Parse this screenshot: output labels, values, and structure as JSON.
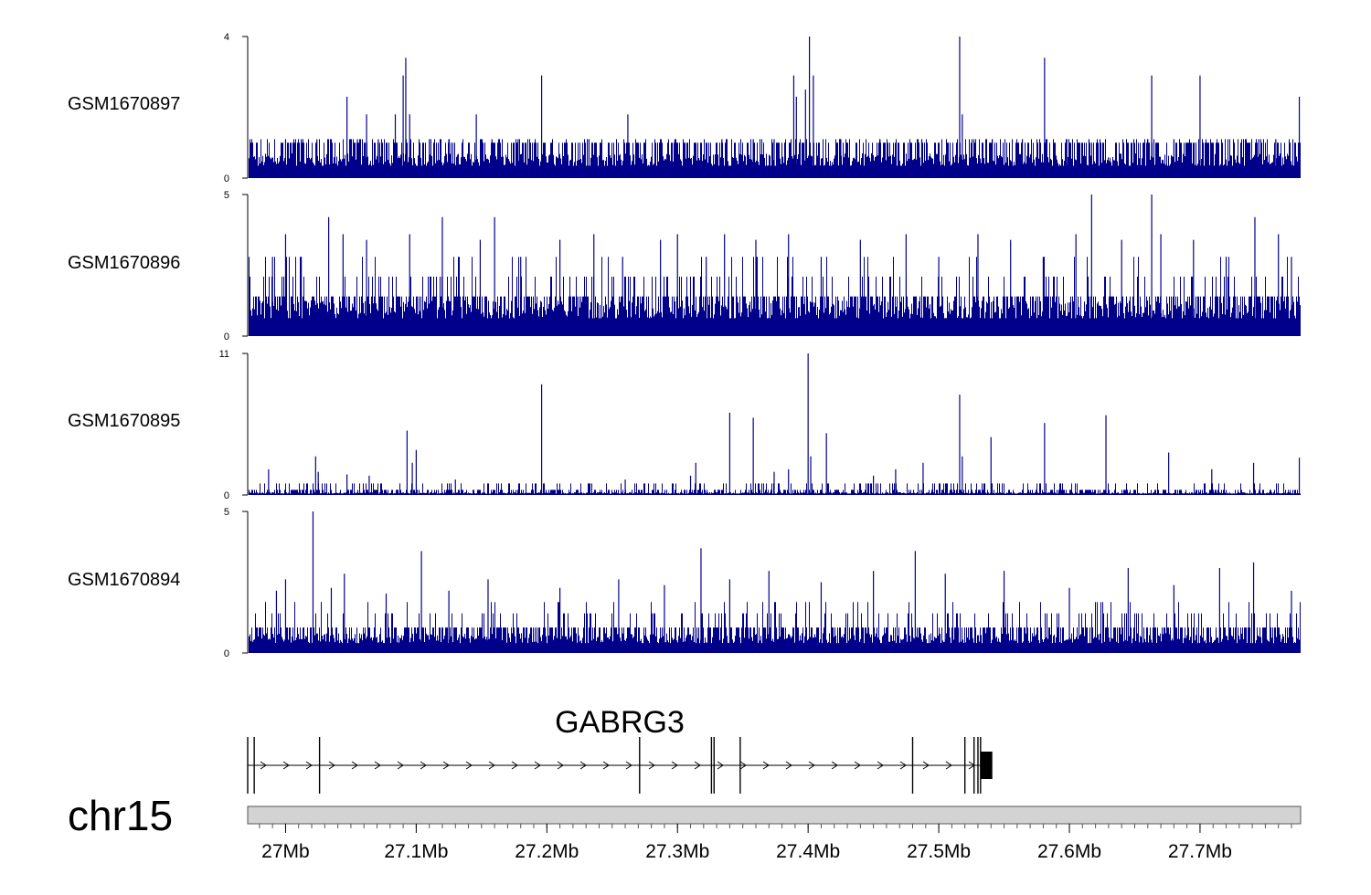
{
  "chart_data": {
    "type": "area",
    "title": "",
    "chromosome": "chr15",
    "bar_color": "#00008b",
    "x_ticks": [
      "27Mb",
      "27.1Mb",
      "27.2Mb",
      "27.3Mb",
      "27.4Mb",
      "27.5Mb",
      "27.6Mb",
      "27.7Mb"
    ],
    "x_tick_values": [
      27.0,
      27.1,
      27.2,
      27.3,
      27.4,
      27.5,
      27.6,
      27.7
    ],
    "xlim": [
      26.971,
      27.777
    ],
    "tracks": [
      {
        "name": "GSM1670897",
        "ylim": [
          0,
          4
        ],
        "y_ticks": [
          "0",
          "4"
        ],
        "baseline": 0.5,
        "level_values": [
          1,
          1.1
        ],
        "peaks": [
          [
            27.0,
            1.1
          ],
          [
            27.012,
            1.1
          ],
          [
            27.024,
            1.1
          ],
          [
            27.035,
            1.1
          ],
          [
            27.047,
            2.3
          ],
          [
            27.055,
            1.1
          ],
          [
            27.062,
            1.8
          ],
          [
            27.071,
            1.1
          ],
          [
            27.084,
            1.8
          ],
          [
            27.09,
            2.9
          ],
          [
            27.092,
            3.4
          ],
          [
            27.095,
            1.8
          ],
          [
            27.11,
            1.1
          ],
          [
            27.125,
            1.1
          ],
          [
            27.146,
            1.8
          ],
          [
            27.158,
            1.1
          ],
          [
            27.178,
            1.1
          ],
          [
            27.196,
            2.9
          ],
          [
            27.231,
            1.1
          ],
          [
            27.262,
            1.8
          ],
          [
            27.298,
            1.1
          ],
          [
            27.334,
            1.1
          ],
          [
            27.358,
            1.1
          ],
          [
            27.374,
            1.1
          ],
          [
            27.389,
            2.9
          ],
          [
            27.391,
            2.3
          ],
          [
            27.398,
            2.5
          ],
          [
            27.401,
            4.0
          ],
          [
            27.404,
            2.9
          ],
          [
            27.425,
            1.1
          ],
          [
            27.455,
            1.1
          ],
          [
            27.487,
            1.1
          ],
          [
            27.516,
            4.0
          ],
          [
            27.518,
            1.8
          ],
          [
            27.541,
            1.1
          ],
          [
            27.564,
            1.1
          ],
          [
            27.581,
            3.4
          ],
          [
            27.598,
            1.1
          ],
          [
            27.615,
            1.1
          ],
          [
            27.66,
            1.1
          ],
          [
            27.663,
            2.9
          ],
          [
            27.68,
            1.1
          ],
          [
            27.7,
            2.9
          ],
          [
            27.745,
            1.1
          ],
          [
            27.758,
            1.1
          ],
          [
            27.776,
            2.3
          ]
        ]
      },
      {
        "name": "GSM1670896",
        "ylim": [
          0,
          5
        ],
        "y_ticks": [
          "0",
          "5"
        ],
        "baseline": 0.9,
        "level_values": [
          1.4,
          2.1,
          2.8
        ],
        "peaks": [
          [
            26.99,
            2.8
          ],
          [
            27.0,
            3.6
          ],
          [
            27.012,
            2.8
          ],
          [
            27.033,
            4.2
          ],
          [
            27.044,
            3.6
          ],
          [
            27.062,
            3.4
          ],
          [
            27.095,
            3.6
          ],
          [
            27.12,
            4.2
          ],
          [
            27.149,
            3.4
          ],
          [
            27.16,
            4.2
          ],
          [
            27.18,
            2.8
          ],
          [
            27.21,
            3.4
          ],
          [
            27.236,
            3.6
          ],
          [
            27.258,
            2.8
          ],
          [
            27.287,
            3.4
          ],
          [
            27.3,
            3.6
          ],
          [
            27.322,
            2.8
          ],
          [
            27.336,
            3.6
          ],
          [
            27.36,
            3.4
          ],
          [
            27.385,
            3.6
          ],
          [
            27.41,
            2.8
          ],
          [
            27.44,
            3.4
          ],
          [
            27.475,
            3.6
          ],
          [
            27.5,
            2.8
          ],
          [
            27.53,
            3.6
          ],
          [
            27.555,
            3.4
          ],
          [
            27.58,
            2.8
          ],
          [
            27.605,
            3.6
          ],
          [
            27.617,
            5.0
          ],
          [
            27.64,
            3.4
          ],
          [
            27.663,
            5.0
          ],
          [
            27.67,
            3.6
          ],
          [
            27.695,
            3.4
          ],
          [
            27.72,
            2.8
          ],
          [
            27.742,
            4.2
          ],
          [
            27.76,
            3.6
          ],
          [
            27.77,
            2.8
          ]
        ]
      },
      {
        "name": "GSM1670895",
        "ylim": [
          0,
          11
        ],
        "y_ticks": [
          "0",
          "11"
        ],
        "baseline": 0.15,
        "level_values": [
          0.4,
          0.9
        ],
        "peaks": [
          [
            26.987,
            2.0
          ],
          [
            27.023,
            3.0
          ],
          [
            27.025,
            1.8
          ],
          [
            27.047,
            1.6
          ],
          [
            27.064,
            1.5
          ],
          [
            27.093,
            5.0
          ],
          [
            27.097,
            2.5
          ],
          [
            27.1,
            3.5
          ],
          [
            27.13,
            1.2
          ],
          [
            27.196,
            8.6
          ],
          [
            27.26,
            1.2
          ],
          [
            27.31,
            1.5
          ],
          [
            27.314,
            2.5
          ],
          [
            27.34,
            6.4
          ],
          [
            27.358,
            6.0
          ],
          [
            27.374,
            1.8
          ],
          [
            27.385,
            2.0
          ],
          [
            27.4,
            11.0
          ],
          [
            27.402,
            3.0
          ],
          [
            27.414,
            4.8
          ],
          [
            27.45,
            1.5
          ],
          [
            27.467,
            2.0
          ],
          [
            27.488,
            2.5
          ],
          [
            27.516,
            7.8
          ],
          [
            27.518,
            3.0
          ],
          [
            27.54,
            4.5
          ],
          [
            27.581,
            5.6
          ],
          [
            27.628,
            6.2
          ],
          [
            27.676,
            3.3
          ],
          [
            27.709,
            2.0
          ],
          [
            27.741,
            2.5
          ],
          [
            27.776,
            2.9
          ]
        ]
      },
      {
        "name": "GSM1670894",
        "ylim": [
          0,
          5
        ],
        "y_ticks": [
          "0",
          "5"
        ],
        "baseline": 0.5,
        "level_values": [
          0.9,
          1.4,
          1.8
        ],
        "peaks": [
          [
            26.993,
            2.2
          ],
          [
            27.0,
            2.6
          ],
          [
            27.021,
            5.0
          ],
          [
            27.035,
            2.3
          ],
          [
            27.045,
            2.8
          ],
          [
            27.077,
            2.1
          ],
          [
            27.104,
            3.6
          ],
          [
            27.125,
            2.2
          ],
          [
            27.155,
            2.6
          ],
          [
            27.21,
            2.3
          ],
          [
            27.255,
            2.6
          ],
          [
            27.29,
            2.4
          ],
          [
            27.318,
            3.7
          ],
          [
            27.34,
            2.6
          ],
          [
            27.37,
            2.9
          ],
          [
            27.41,
            2.5
          ],
          [
            27.45,
            2.9
          ],
          [
            27.482,
            3.6
          ],
          [
            27.505,
            2.8
          ],
          [
            27.55,
            2.9
          ],
          [
            27.6,
            2.3
          ],
          [
            27.645,
            3.0
          ],
          [
            27.68,
            2.4
          ],
          [
            27.715,
            3.0
          ],
          [
            27.741,
            3.2
          ],
          [
            27.77,
            2.2
          ]
        ]
      }
    ],
    "gene": {
      "name": "GABRG3",
      "strand": "+",
      "start": 26.971,
      "end": 27.541,
      "exons": [
        26.971,
        26.976,
        27.026,
        27.271,
        27.326,
        27.328,
        27.348,
        27.48,
        27.52,
        27.527,
        27.53,
        27.532
      ],
      "utr_block": [
        27.532,
        27.541
      ]
    }
  }
}
